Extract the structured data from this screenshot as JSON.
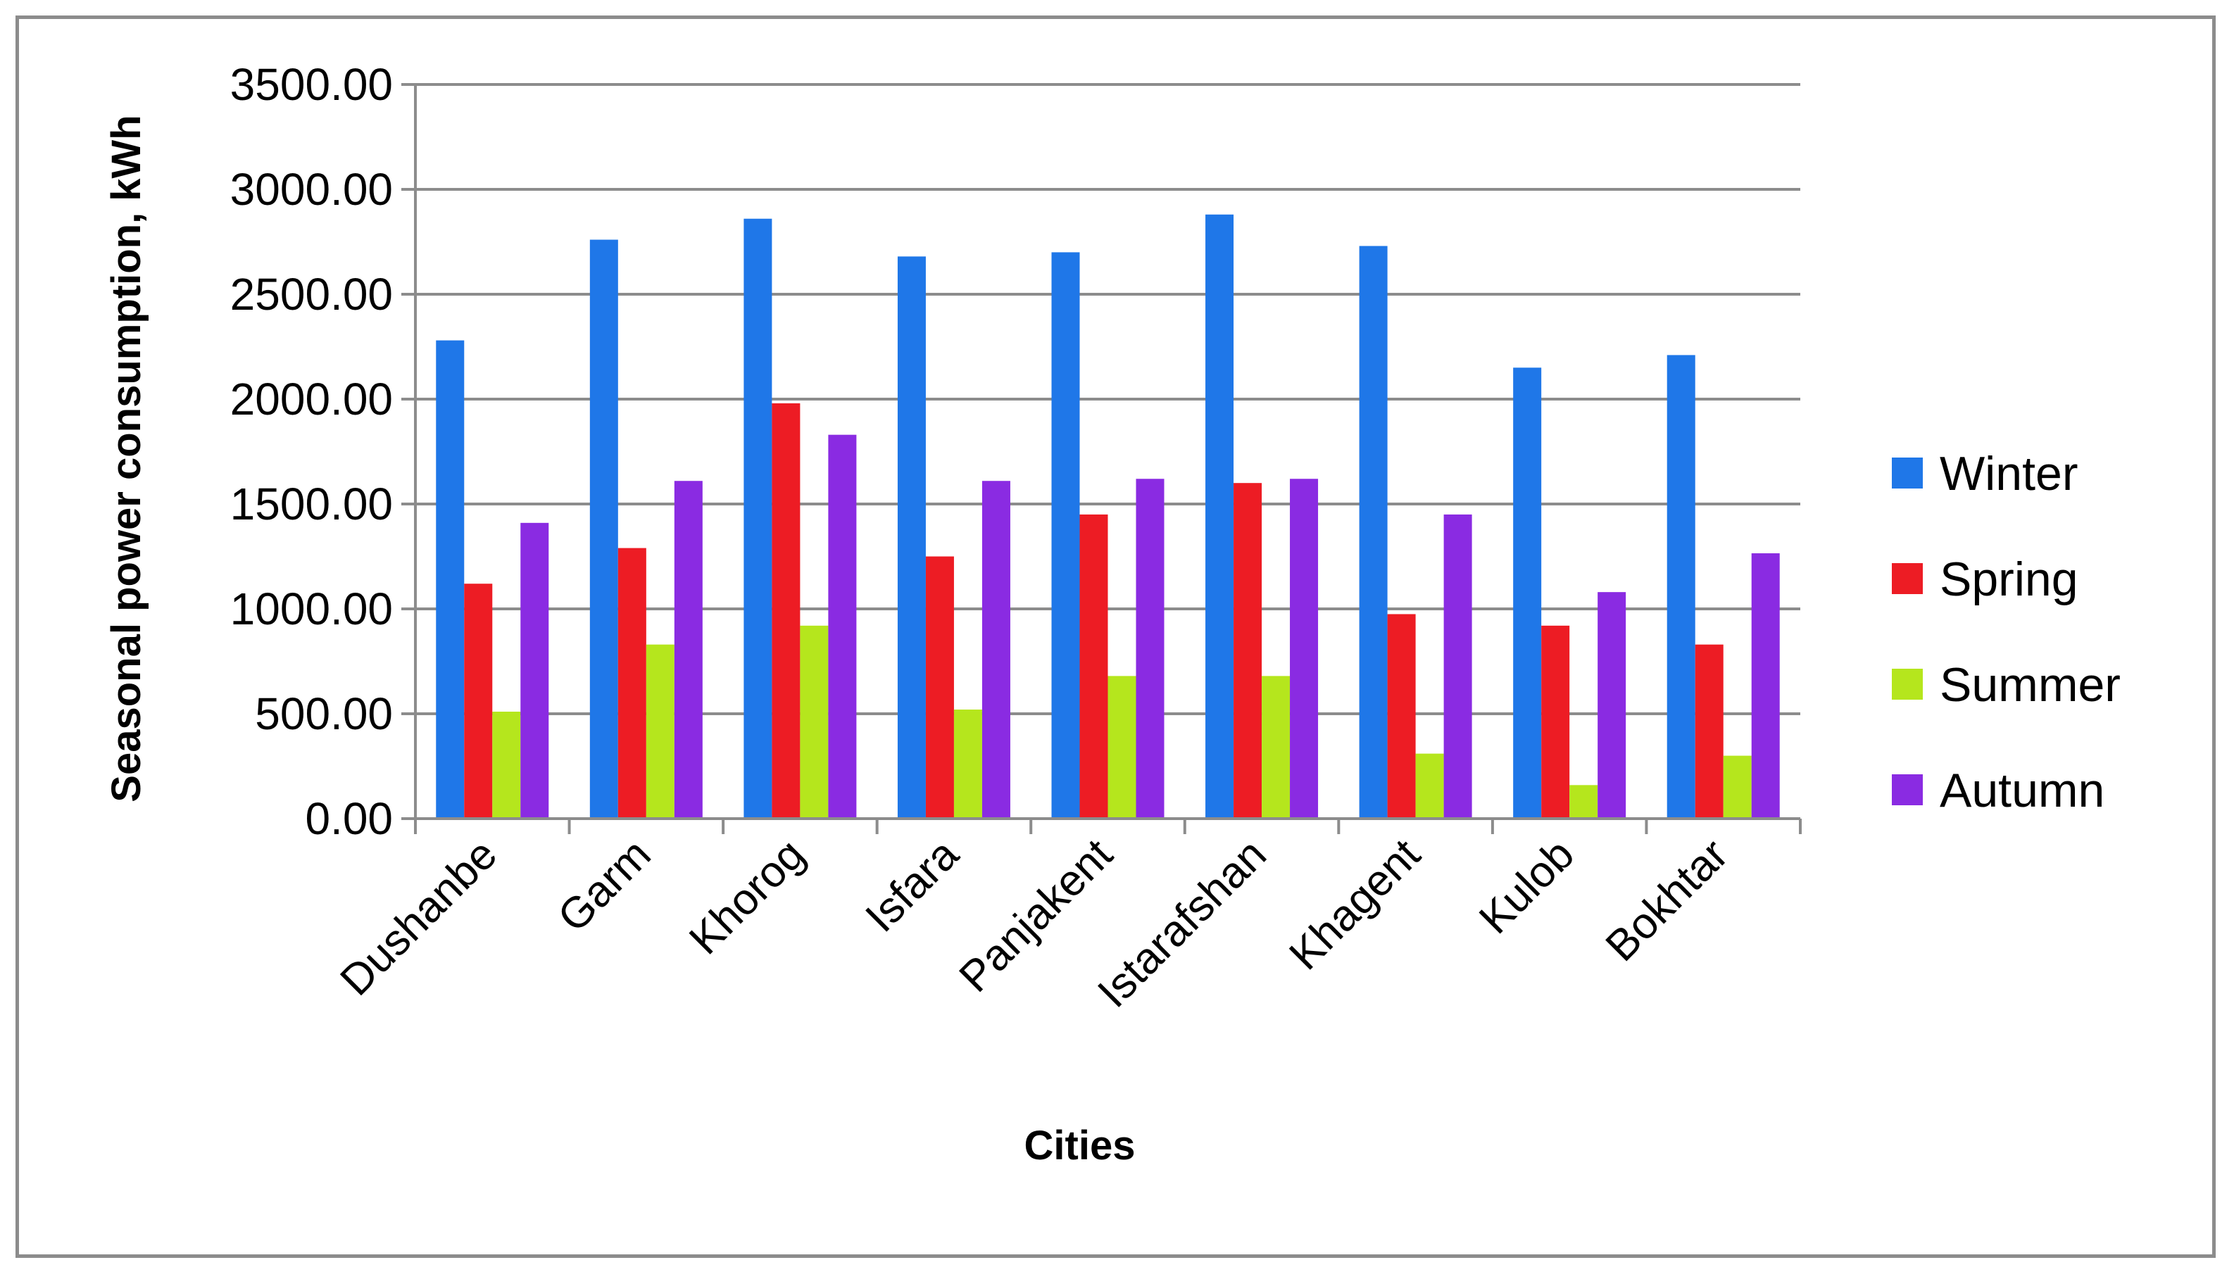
{
  "chart_data": {
    "type": "bar",
    "title": "",
    "xlabel": "Cities",
    "ylabel": "Seasonal power consumption, kWh",
    "ylim": [
      0,
      3500
    ],
    "ytick_step": 500,
    "ytick_labels": [
      "0.00",
      "500.00",
      "1000.00",
      "1500.00",
      "2000.00",
      "2500.00",
      "3000.00",
      "3500.00"
    ],
    "grid": true,
    "legend_position": "right",
    "categories": [
      "Dushanbe",
      "Garm",
      "Khorog",
      "Isfara",
      "Panjakent",
      "Istarafshan",
      "Khagent",
      "Kulob",
      "Bokhtar"
    ],
    "series": [
      {
        "name": "Winter",
        "color": "#1f77e8",
        "values": [
          2280,
          2760,
          2860,
          2680,
          2700,
          2880,
          2730,
          2150,
          2210
        ]
      },
      {
        "name": "Spring",
        "color": "#ed1c24",
        "values": [
          1120,
          1290,
          1980,
          1250,
          1450,
          1600,
          975,
          920,
          830
        ]
      },
      {
        "name": "Summer",
        "color": "#b5e61d",
        "values": [
          510,
          830,
          920,
          520,
          680,
          680,
          310,
          160,
          300
        ]
      },
      {
        "name": "Autumn",
        "color": "#8a2be2",
        "values": [
          1410,
          1610,
          1830,
          1610,
          1620,
          1620,
          1450,
          1080,
          1265
        ]
      }
    ]
  }
}
